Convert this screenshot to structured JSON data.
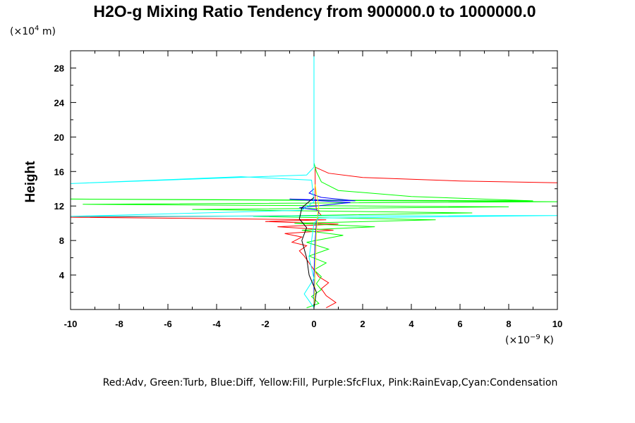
{
  "chart_data": {
    "type": "line",
    "title": "H2O-g Mixing Ratio Tendency from 900000.0 to 1000000.0",
    "ylabel": "Height",
    "y_unit_prefix": "(×10",
    "y_unit_exp": "4",
    "y_unit_suffix": " m)",
    "x_unit_prefix": "(×10",
    "x_unit_exp": "−9",
    "x_unit_suffix": " K)",
    "xlim": [
      -10,
      10
    ],
    "ylim": [
      0,
      30
    ],
    "x_ticks": [
      -10,
      -8,
      -6,
      -4,
      -2,
      0,
      2,
      4,
      6,
      8,
      10
    ],
    "y_ticks": [
      4,
      8,
      12,
      16,
      20,
      24,
      28
    ],
    "legend_text": "Red:Adv, Green:Turb, Blue:Diff, Yellow:Fill, Purple:SfcFlux, Pink:RainEvap,Cyan:Condensation",
    "series": [
      {
        "color": "#ff0000",
        "points": [
          [
            0.5,
            0.2
          ],
          [
            0.9,
            0.8
          ],
          [
            0.5,
            1.6
          ],
          [
            0.3,
            2.4
          ],
          [
            0.6,
            3.1
          ],
          [
            0.2,
            3.8
          ],
          [
            0.0,
            4.6
          ],
          [
            -0.2,
            5.4
          ],
          [
            -0.4,
            6.2
          ],
          [
            -0.6,
            6.8
          ],
          [
            -0.3,
            7.4
          ],
          [
            -0.9,
            7.8
          ],
          [
            -0.5,
            8.4
          ],
          [
            -1.2,
            8.8
          ],
          [
            0.8,
            9.2
          ],
          [
            -1.5,
            9.6
          ],
          [
            1.0,
            9.9
          ],
          [
            -2.0,
            10.2
          ],
          [
            0.5,
            10.4
          ],
          [
            -10,
            10.7
          ],
          [
            0.3,
            10.9
          ],
          [
            0.1,
            11.6
          ],
          [
            0.05,
            13.0
          ],
          [
            0.05,
            15.0
          ],
          [
            0.05,
            16.5
          ],
          [
            0.6,
            15.8
          ],
          [
            2.0,
            15.3
          ],
          [
            6.0,
            14.9
          ],
          [
            10,
            14.7
          ]
        ]
      },
      {
        "color": "#00ff00",
        "points": [
          [
            -0.3,
            0.2
          ],
          [
            0.2,
            0.7
          ],
          [
            -0.1,
            1.5
          ],
          [
            0.3,
            2.3
          ],
          [
            0.1,
            3.0
          ],
          [
            0.3,
            3.8
          ],
          [
            0.0,
            4.6
          ],
          [
            0.5,
            5.4
          ],
          [
            -0.2,
            6.2
          ],
          [
            0.6,
            7.0
          ],
          [
            -0.3,
            7.8
          ],
          [
            1.2,
            8.6
          ],
          [
            -0.5,
            9.2
          ],
          [
            2.5,
            9.6
          ],
          [
            -0.8,
            10.0
          ],
          [
            5.0,
            10.4
          ],
          [
            -2.5,
            10.8
          ],
          [
            6.5,
            11.2
          ],
          [
            -5.0,
            11.6
          ],
          [
            8.0,
            11.9
          ],
          [
            -9.5,
            12.2
          ],
          [
            10,
            12.5
          ],
          [
            -10,
            12.8
          ],
          [
            9.0,
            12.6
          ],
          [
            4.0,
            13.1
          ],
          [
            1.0,
            13.8
          ],
          [
            0.3,
            14.8
          ],
          [
            0.1,
            16.0
          ],
          [
            0.0,
            17.0
          ]
        ]
      },
      {
        "color": "#0000ff",
        "points": [
          [
            0.0,
            0.2
          ],
          [
            0.0,
            4.0
          ],
          [
            0.05,
            8.0
          ],
          [
            0.1,
            10.0
          ],
          [
            0.2,
            11.5
          ],
          [
            -0.6,
            11.8
          ],
          [
            1.5,
            12.4
          ],
          [
            -1.0,
            12.8
          ],
          [
            1.7,
            12.6
          ],
          [
            0.3,
            13.0
          ],
          [
            -0.2,
            13.5
          ],
          [
            0.0,
            14.0
          ]
        ]
      },
      {
        "color": "#ffff00",
        "points": [
          [
            0.0,
            0.2
          ],
          [
            0.05,
            4.0
          ],
          [
            0.1,
            9.0
          ],
          [
            0.15,
            11.0
          ],
          [
            0.2,
            12.0
          ],
          [
            0.1,
            13.5
          ],
          [
            0.05,
            14.5
          ]
        ]
      },
      {
        "color": "#00ffff",
        "points": [
          [
            0.0,
            0.2
          ],
          [
            -0.4,
            1.8
          ],
          [
            0.0,
            3.6
          ],
          [
            -0.2,
            6.0
          ],
          [
            -0.1,
            8.0
          ],
          [
            0.0,
            10.0
          ],
          [
            0.2,
            10.6
          ],
          [
            10,
            10.9
          ],
          [
            -10,
            10.8
          ],
          [
            -0.5,
            11.5
          ],
          [
            0.0,
            12.5
          ],
          [
            -0.1,
            15.0
          ],
          [
            -3.0,
            15.4
          ],
          [
            -10,
            14.6
          ],
          [
            -0.3,
            15.6
          ],
          [
            0.0,
            16.5
          ],
          [
            0.0,
            30.0
          ]
        ]
      },
      {
        "color": "#000000",
        "points": [
          [
            0.0,
            0.2
          ],
          [
            0.1,
            2.0
          ],
          [
            -0.2,
            4.0
          ],
          [
            -0.3,
            6.0
          ],
          [
            -0.5,
            8.0
          ],
          [
            -0.3,
            9.5
          ],
          [
            -0.6,
            10.5
          ],
          [
            -0.5,
            11.8
          ],
          [
            0.0,
            13.0
          ]
        ]
      }
    ]
  }
}
